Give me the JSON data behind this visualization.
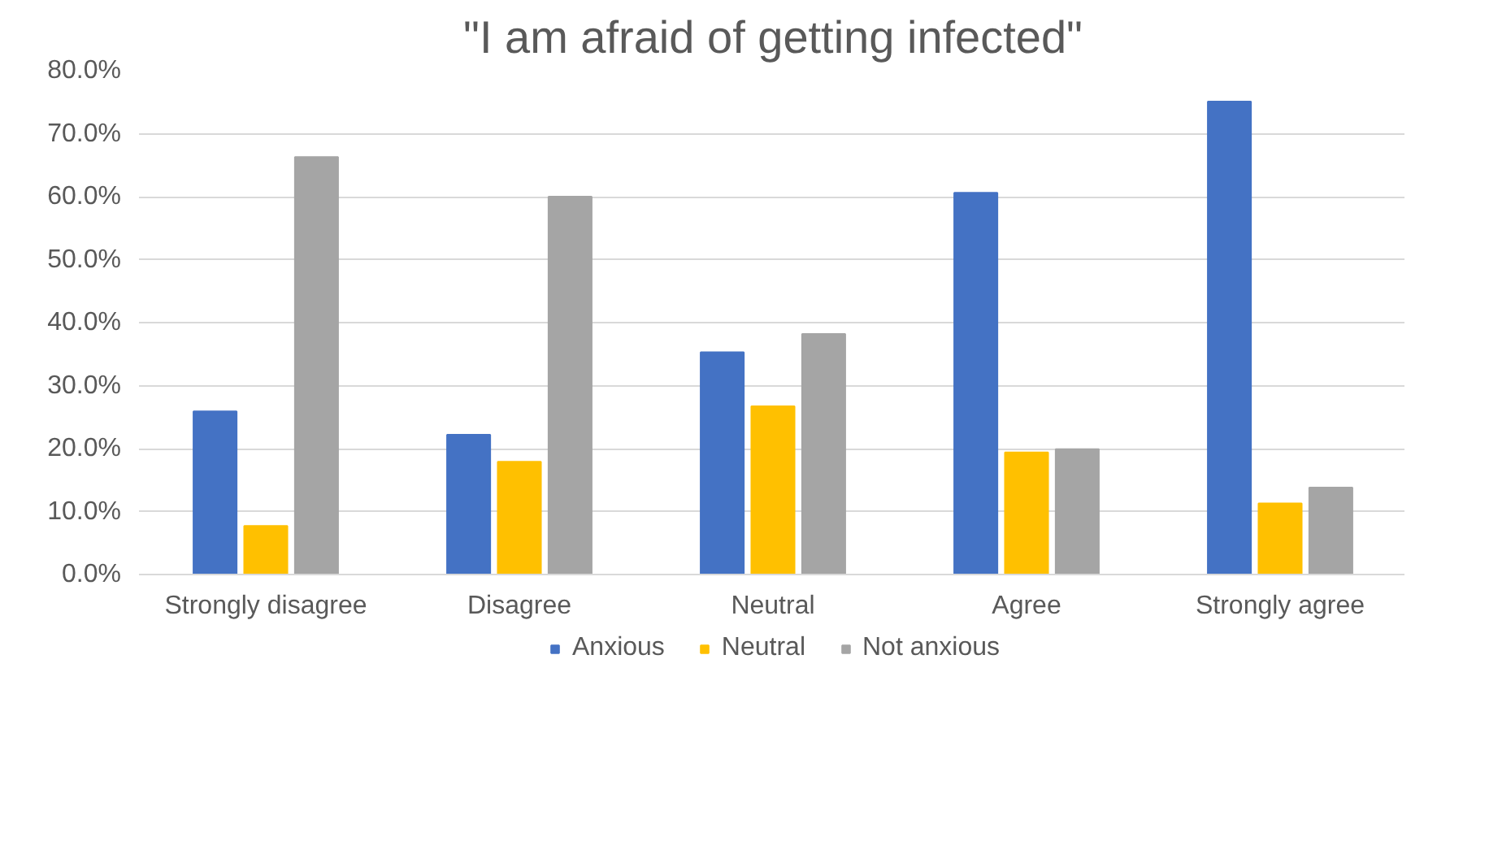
{
  "chart_data": {
    "type": "bar",
    "title": "\"I am afraid of getting infected\"",
    "categories": [
      "Strongly disagree",
      "Disagree",
      "Neutral",
      "Agree",
      "Strongly agree"
    ],
    "series": [
      {
        "name": "Anxious",
        "color": "#4472c4",
        "values": [
          25.9,
          22.2,
          35.3,
          60.6,
          75.1
        ]
      },
      {
        "name": "Neutral",
        "color": "#ffc000",
        "values": [
          7.7,
          17.9,
          26.7,
          19.4,
          11.3
        ]
      },
      {
        "name": "Not anxious",
        "color": "#a5a5a5",
        "values": [
          66.3,
          60.0,
          38.2,
          19.9,
          13.8
        ]
      }
    ],
    "ylim": [
      0,
      80
    ],
    "yticks": [
      {
        "value": 0,
        "label": "0.0%"
      },
      {
        "value": 10,
        "label": "10.0%"
      },
      {
        "value": 20,
        "label": "20.0%"
      },
      {
        "value": 30,
        "label": "30.0%"
      },
      {
        "value": 40,
        "label": "40.0%"
      },
      {
        "value": 50,
        "label": "50.0%"
      },
      {
        "value": 60,
        "label": "60.0%"
      },
      {
        "value": 70,
        "label": "70.0%"
      },
      {
        "value": 80,
        "label": "80.0%"
      }
    ],
    "grid": "y",
    "legend": "bottom"
  }
}
